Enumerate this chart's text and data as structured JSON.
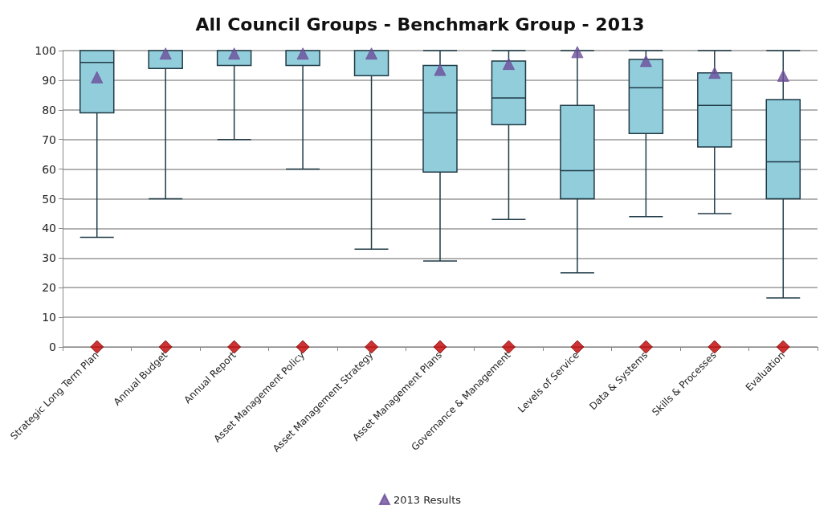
{
  "chart_data": {
    "type": "box",
    "title": "All Council Groups - Benchmark Group - 2013",
    "categories": [
      "Strategic Long Term Plan",
      "Annual Budget",
      "Annual Report",
      "Asset Management Policy",
      "Asset Management Strategy",
      "Asset Management Plans",
      "Governance & Management",
      "Levels of Service",
      "Data & Systems",
      "Skills & Processes",
      "Evaluation"
    ],
    "color": "#92cddc",
    "boxes": [
      {
        "low": 37,
        "q1": 79,
        "median": 96,
        "q3": 100,
        "high": 100
      },
      {
        "low": 50,
        "q1": 94,
        "median": 100,
        "q3": 100,
        "high": 100
      },
      {
        "low": 70,
        "q1": 95,
        "median": 100,
        "q3": 100,
        "high": 100
      },
      {
        "low": 60,
        "q1": 95,
        "median": 100,
        "q3": 100,
        "high": 100
      },
      {
        "low": 33,
        "q1": 91.5,
        "median": 100,
        "q3": 100,
        "high": 100
      },
      {
        "low": 29,
        "q1": 59,
        "median": 79,
        "q3": 95,
        "high": 100
      },
      {
        "low": 43,
        "q1": 75,
        "median": 84,
        "q3": 96.5,
        "high": 100
      },
      {
        "low": 25,
        "q1": 50,
        "median": 59.5,
        "q3": 81.5,
        "high": 100
      },
      {
        "low": 44,
        "q1": 72,
        "median": 87.5,
        "q3": 97,
        "high": 100
      },
      {
        "low": 45,
        "q1": 67.5,
        "median": 81.5,
        "q3": 92.5,
        "high": 100
      },
      {
        "low": 16.5,
        "q1": 50,
        "median": 62.5,
        "q3": 83.5,
        "high": 100
      }
    ],
    "series": [
      {
        "type": "scatter",
        "name": "2013 Results",
        "color": "#6b4f9a",
        "marker": "triangle",
        "x": [
          "Strategic Long Term Plan",
          "Annual Budget",
          "Annual Report",
          "Asset Management Policy",
          "Asset Management Strategy",
          "Asset Management Plans",
          "Governance & Management",
          "Levels of Service",
          "Data & Systems",
          "Skills & Processes",
          "Evaluation"
        ],
        "values": [
          91,
          99,
          99,
          99,
          99,
          93.5,
          95.5,
          99.5,
          96.5,
          92.5,
          91.5
        ]
      },
      {
        "type": "scatter",
        "color": "#c00000",
        "marker": "diamond",
        "x": [
          "Strategic Long Term Plan",
          "Annual Budget",
          "Annual Report",
          "Asset Management Policy",
          "Asset Management Strategy",
          "Asset Management Plans",
          "Governance & Management",
          "Levels of Service",
          "Data & Systems",
          "Skills & Processes",
          "Evaluation"
        ],
        "values": [
          0,
          0,
          0,
          0,
          0,
          0,
          0,
          0,
          0,
          0,
          0
        ]
      }
    ],
    "ylim": [
      0,
      100
    ],
    "yticks": [
      0,
      10,
      20,
      30,
      40,
      50,
      60,
      70,
      80,
      90,
      100
    ],
    "grid": "y",
    "legend": "bottom"
  }
}
